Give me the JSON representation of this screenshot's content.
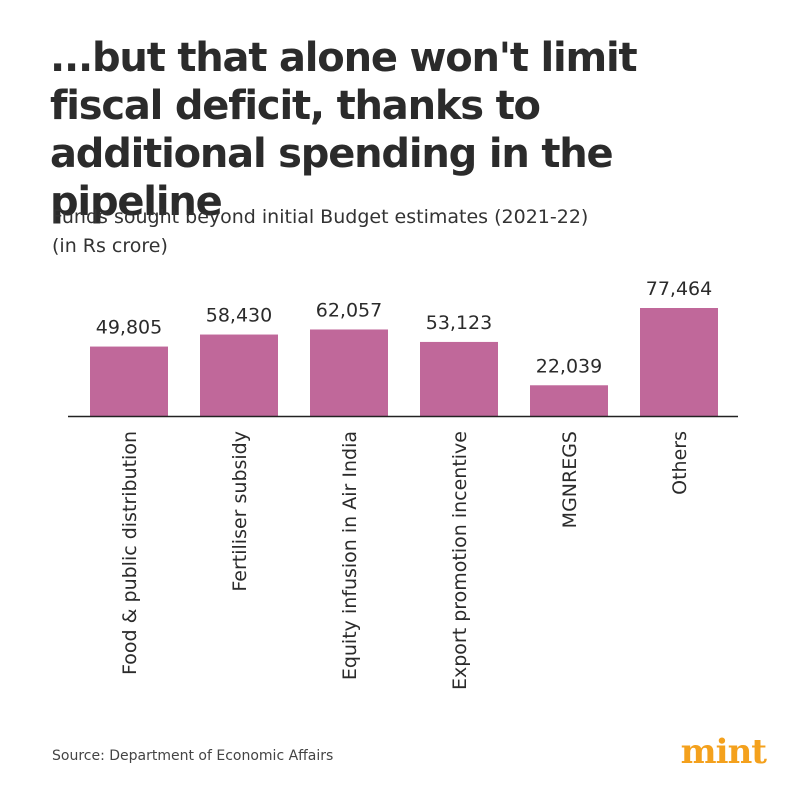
{
  "chart_data": {
    "type": "bar",
    "title": "...but that alone won't limit fiscal deficit, thanks to additional spending in the pipeline",
    "subtitle_line1": "Funds sought beyond initial Budget estimates (2021-22)",
    "subtitle_line2": "(in Rs crore)",
    "categories": [
      "Food & public distribution",
      "Fertiliser subsidy",
      "Equity infusion in Air India",
      "Export promotion incentive",
      "MGNREGS",
      "Others"
    ],
    "values": [
      49805,
      58430,
      62057,
      53123,
      22039,
      77464
    ],
    "value_labels": [
      "49,805",
      "58,430",
      "62,057",
      "53,123",
      "22,039",
      "77,464"
    ],
    "xlabel": "",
    "ylabel": "",
    "ylim": [
      0,
      77464
    ],
    "grid": false,
    "bar_color": "#c0689a"
  },
  "source": "Source: Department of Economic Affairs",
  "brand": {
    "name": "mint",
    "color": "#f4a11d"
  }
}
